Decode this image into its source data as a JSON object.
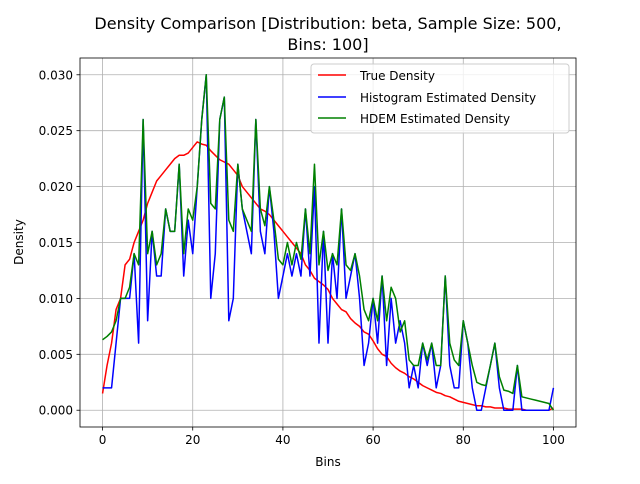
{
  "chart_data": {
    "type": "line",
    "title_line1": "Density Comparison [Distribution: beta, Sample Size: 500,",
    "title_line2": "Bins: 100]",
    "xlabel": "Bins",
    "ylabel": "Density",
    "xlim": [
      -5,
      105
    ],
    "ylim": [
      -0.0015,
      0.0315
    ],
    "x_ticks": [
      0,
      20,
      40,
      60,
      80,
      100
    ],
    "y_ticks": [
      0.0,
      0.005,
      0.01,
      0.015,
      0.02,
      0.025,
      0.03
    ],
    "y_tick_labels": [
      "0.000",
      "0.005",
      "0.010",
      "0.015",
      "0.020",
      "0.025",
      "0.030"
    ],
    "grid": true,
    "legend_position": "top-right",
    "x": [
      0,
      1,
      2,
      3,
      4,
      5,
      6,
      7,
      8,
      9,
      10,
      11,
      12,
      13,
      14,
      15,
      16,
      17,
      18,
      19,
      20,
      21,
      22,
      23,
      24,
      25,
      26,
      27,
      28,
      29,
      30,
      31,
      32,
      33,
      34,
      35,
      36,
      37,
      38,
      39,
      40,
      41,
      42,
      43,
      44,
      45,
      46,
      47,
      48,
      49,
      50,
      51,
      52,
      53,
      54,
      55,
      56,
      57,
      58,
      59,
      60,
      61,
      62,
      63,
      64,
      65,
      66,
      67,
      68,
      69,
      70,
      71,
      72,
      73,
      74,
      75,
      76,
      77,
      78,
      79,
      80,
      81,
      82,
      83,
      84,
      85,
      86,
      87,
      88,
      89,
      90,
      91,
      92,
      93,
      94,
      95,
      96,
      97,
      98,
      99,
      100
    ],
    "series": [
      {
        "name": "True Density",
        "color": "#ff0000",
        "values": [
          0.0015,
          0.004,
          0.006,
          0.009,
          0.01,
          0.013,
          0.0135,
          0.015,
          0.016,
          0.017,
          0.0185,
          0.0195,
          0.0205,
          0.021,
          0.0215,
          0.022,
          0.0225,
          0.0228,
          0.0228,
          0.023,
          0.0235,
          0.024,
          0.0238,
          0.0237,
          0.0232,
          0.0228,
          0.0224,
          0.0222,
          0.022,
          0.0215,
          0.021,
          0.02,
          0.0195,
          0.019,
          0.0185,
          0.018,
          0.0178,
          0.0175,
          0.017,
          0.0165,
          0.016,
          0.0155,
          0.015,
          0.0145,
          0.014,
          0.013,
          0.0125,
          0.0118,
          0.0115,
          0.0112,
          0.0108,
          0.01,
          0.0095,
          0.009,
          0.0088,
          0.0082,
          0.0078,
          0.0075,
          0.007,
          0.0068,
          0.0062,
          0.0055,
          0.005,
          0.0048,
          0.0042,
          0.0038,
          0.0035,
          0.0033,
          0.003,
          0.0028,
          0.0025,
          0.0022,
          0.002,
          0.0018,
          0.0016,
          0.0015,
          0.0013,
          0.0012,
          0.001,
          0.0008,
          0.0007,
          0.0006,
          0.0005,
          0.0004,
          0.0004,
          0.0003,
          0.0003,
          0.0002,
          0.0002,
          0.0002,
          0.0001,
          0.0001,
          0.0001,
          0.0001,
          0.0,
          0.0,
          0.0,
          0.0,
          0.0,
          0.0,
          0.0002
        ]
      },
      {
        "name": "Histogram Estimated Density",
        "color": "#0000ff",
        "values": [
          0.002,
          0.002,
          0.002,
          0.006,
          0.01,
          0.01,
          0.01,
          0.014,
          0.006,
          0.026,
          0.008,
          0.016,
          0.012,
          0.012,
          0.018,
          0.016,
          0.016,
          0.022,
          0.012,
          0.017,
          0.014,
          0.02,
          0.026,
          0.03,
          0.01,
          0.014,
          0.026,
          0.028,
          0.008,
          0.01,
          0.022,
          0.018,
          0.016,
          0.014,
          0.026,
          0.016,
          0.014,
          0.02,
          0.016,
          0.01,
          0.012,
          0.014,
          0.012,
          0.014,
          0.012,
          0.018,
          0.012,
          0.02,
          0.006,
          0.016,
          0.006,
          0.014,
          0.01,
          0.018,
          0.01,
          0.012,
          0.014,
          0.01,
          0.004,
          0.006,
          0.01,
          0.006,
          0.012,
          0.004,
          0.01,
          0.006,
          0.008,
          0.006,
          0.002,
          0.004,
          0.002,
          0.006,
          0.004,
          0.006,
          0.002,
          0.004,
          0.012,
          0.004,
          0.002,
          0.002,
          0.008,
          0.006,
          0.002,
          0.0,
          0.0,
          0.002,
          0.004,
          0.006,
          0.002,
          0.0,
          0.0,
          0.0,
          0.004,
          0.0,
          0.0,
          0.0,
          0.0,
          0.0,
          0.0,
          0.0,
          0.002
        ]
      },
      {
        "name": "HDEM Estimated Density",
        "color": "#008000",
        "values": [
          0.0063,
          0.0066,
          0.007,
          0.008,
          0.01,
          0.01,
          0.011,
          0.014,
          0.013,
          0.026,
          0.014,
          0.016,
          0.013,
          0.014,
          0.018,
          0.016,
          0.016,
          0.022,
          0.014,
          0.018,
          0.017,
          0.02,
          0.026,
          0.03,
          0.0185,
          0.018,
          0.026,
          0.028,
          0.017,
          0.016,
          0.022,
          0.018,
          0.017,
          0.016,
          0.026,
          0.018,
          0.0165,
          0.02,
          0.017,
          0.0135,
          0.013,
          0.015,
          0.013,
          0.015,
          0.0135,
          0.018,
          0.014,
          0.022,
          0.013,
          0.016,
          0.0125,
          0.014,
          0.013,
          0.018,
          0.013,
          0.0125,
          0.014,
          0.012,
          0.009,
          0.008,
          0.01,
          0.008,
          0.012,
          0.008,
          0.011,
          0.01,
          0.007,
          0.008,
          0.0045,
          0.004,
          0.004,
          0.006,
          0.0045,
          0.006,
          0.004,
          0.004,
          0.012,
          0.006,
          0.0045,
          0.004,
          0.008,
          0.006,
          0.004,
          0.0025,
          0.0023,
          0.0022,
          0.004,
          0.006,
          0.003,
          0.0018,
          0.0017,
          0.0015,
          0.004,
          0.0012,
          0.0011,
          0.001,
          0.0009,
          0.0008,
          0.0007,
          0.0006,
          0.0
        ]
      }
    ]
  }
}
